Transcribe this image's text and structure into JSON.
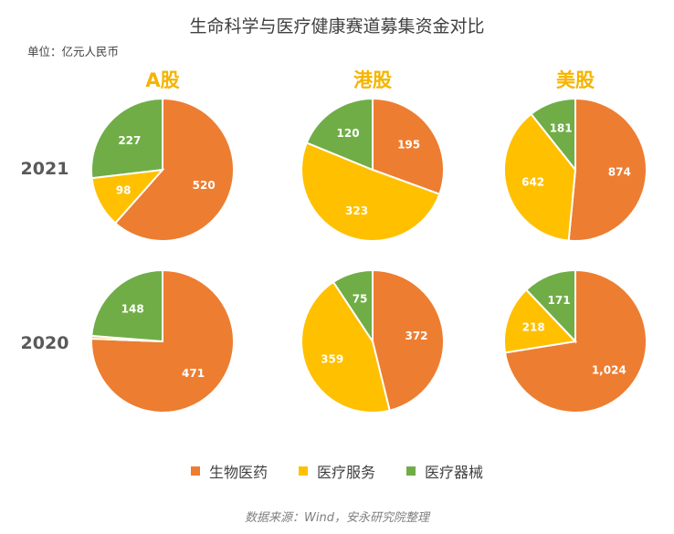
{
  "title": "生命科学与医疗健康赛道募集资金对比",
  "unit": "单位：亿元人民币",
  "source": "数据来源：Wind，安永研究院整理",
  "colors": {
    "生物医药": "#ed7d31",
    "医疗服务": "#ffc000",
    "医疗器械": "#70ad47"
  },
  "legend": [
    "生物医药",
    "医疗服务",
    "医疗器械"
  ],
  "columns": [
    "A股",
    "港股",
    "美股"
  ],
  "rows": [
    "2021",
    "2020"
  ],
  "chart_data": [
    {
      "type": "pie",
      "title": "A股",
      "year": "2021",
      "labels": [
        "生物医药",
        "医疗服务",
        "医疗器械"
      ],
      "values": [
        520,
        98,
        227
      ],
      "value_labels": [
        "520",
        "98",
        "227"
      ]
    },
    {
      "type": "pie",
      "title": "港股",
      "year": "2021",
      "labels": [
        "生物医药",
        "医疗服务",
        "医疗器械"
      ],
      "values": [
        195,
        323,
        120
      ],
      "value_labels": [
        "195",
        "323",
        "120"
      ]
    },
    {
      "type": "pie",
      "title": "美股",
      "year": "2021",
      "labels": [
        "生物医药",
        "医疗服务",
        "医疗器械"
      ],
      "values": [
        874,
        642,
        181
      ],
      "value_labels": [
        "874",
        "642",
        "181"
      ]
    },
    {
      "type": "pie",
      "title": "A股",
      "year": "2020",
      "labels": [
        "生物医药",
        "医疗服务",
        "医疗器械"
      ],
      "values": [
        471,
        4,
        148
      ],
      "value_labels": [
        "471",
        "",
        "148"
      ]
    },
    {
      "type": "pie",
      "title": "港股",
      "year": "2020",
      "labels": [
        "生物医药",
        "医疗服务",
        "医疗器械"
      ],
      "values": [
        372,
        359,
        75
      ],
      "value_labels": [
        "372",
        "359",
        "75"
      ]
    },
    {
      "type": "pie",
      "title": "美股",
      "year": "2020",
      "labels": [
        "生物医药",
        "医疗服务",
        "医疗器械"
      ],
      "values": [
        1024,
        218,
        171
      ],
      "value_labels": [
        "1,024",
        "218",
        "171"
      ]
    }
  ]
}
